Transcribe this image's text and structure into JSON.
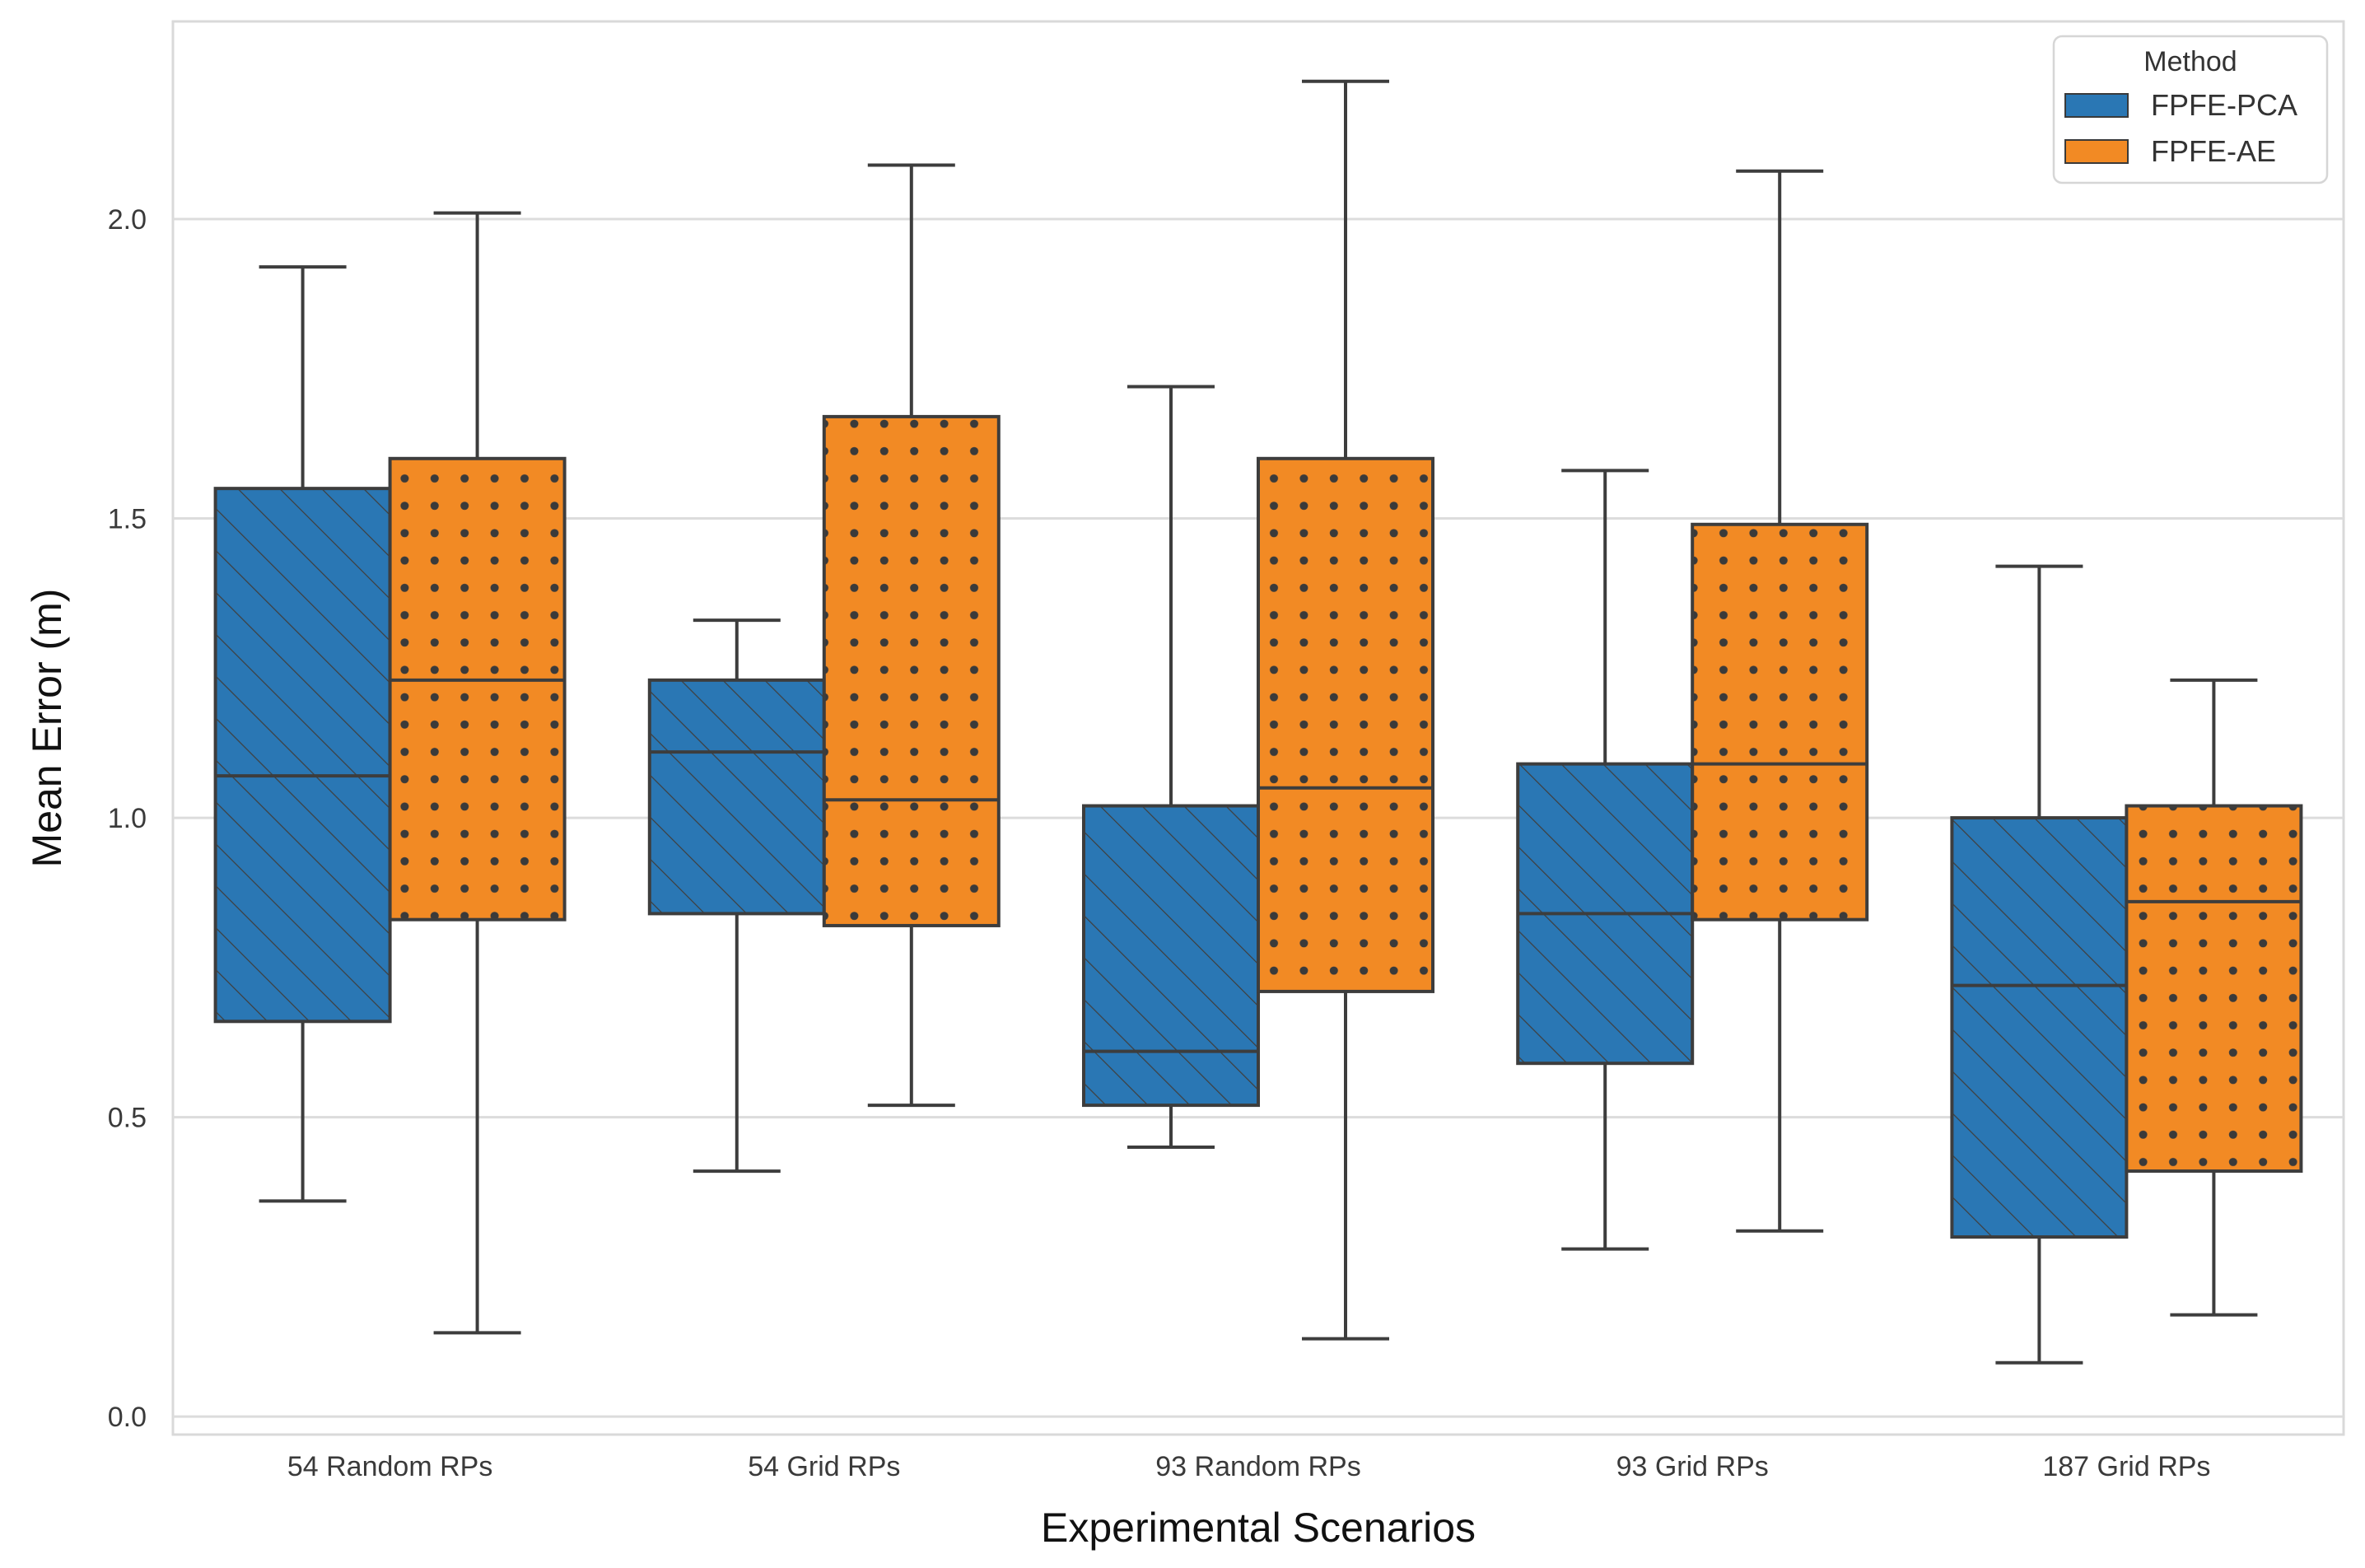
{
  "chart_data": {
    "type": "box",
    "xlabel": "Experimental Scenarios",
    "ylabel": "Mean Error (m)",
    "ylim": [
      -0.03,
      2.33
    ],
    "yticks": [
      "0.0",
      "0.5",
      "1.0",
      "1.5",
      "2.0"
    ],
    "ytick_values": [
      0.0,
      0.5,
      1.0,
      1.5,
      2.0
    ],
    "grid": true,
    "categories": [
      "54 Random RPs",
      "54 Grid RPs",
      "93 Random RPs",
      "93 Grid RPs",
      "187 Grid RPs"
    ],
    "legend": {
      "title": "Method",
      "position": "top-right"
    },
    "series": [
      {
        "name": "FPFE-PCA",
        "color": "#2a77b4",
        "hatch": "diagonal-lines",
        "boxes": [
          {
            "min": 0.36,
            "q1": 0.66,
            "median": 1.07,
            "q3": 1.55,
            "max": 1.92
          },
          {
            "min": 0.41,
            "q1": 0.84,
            "median": 1.11,
            "q3": 1.23,
            "max": 1.33
          },
          {
            "min": 0.45,
            "q1": 0.52,
            "median": 0.61,
            "q3": 1.02,
            "max": 1.72
          },
          {
            "min": 0.28,
            "q1": 0.59,
            "median": 0.84,
            "q3": 1.09,
            "max": 1.58
          },
          {
            "min": 0.09,
            "q1": 0.3,
            "median": 0.72,
            "q3": 1.0,
            "max": 1.42
          }
        ]
      },
      {
        "name": "FPFE-AE",
        "color": "#f28a24",
        "hatch": "dots",
        "boxes": [
          {
            "min": 0.14,
            "q1": 0.83,
            "median": 1.23,
            "q3": 1.6,
            "max": 2.01
          },
          {
            "min": 0.52,
            "q1": 0.82,
            "median": 1.03,
            "q3": 1.67,
            "max": 2.09
          },
          {
            "min": 0.13,
            "q1": 0.71,
            "median": 1.05,
            "q3": 1.6,
            "max": 2.23
          },
          {
            "min": 0.31,
            "q1": 0.83,
            "median": 1.09,
            "q3": 1.49,
            "max": 2.08
          },
          {
            "min": 0.17,
            "q1": 0.41,
            "median": 0.86,
            "q3": 1.02,
            "max": 1.23
          }
        ]
      }
    ]
  }
}
